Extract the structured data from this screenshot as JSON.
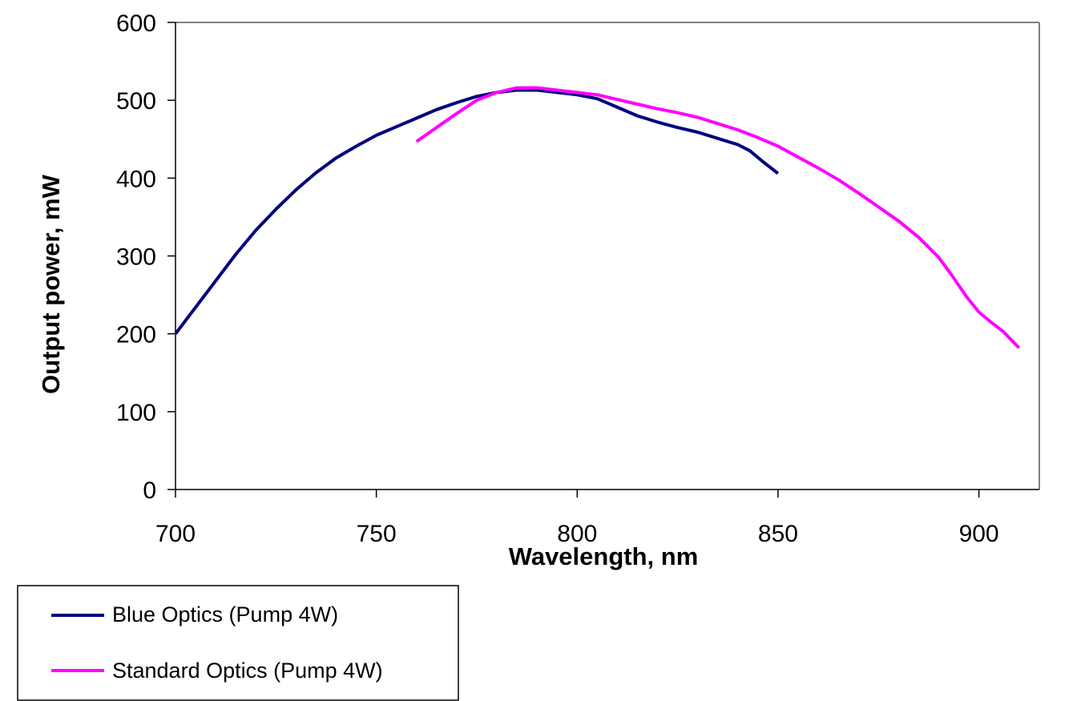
{
  "chart_data": {
    "type": "line",
    "title": "",
    "xlabel": "Wavelength, nm",
    "ylabel": "Output power, mW",
    "xlim": [
      700,
      915
    ],
    "ylim": [
      0,
      600
    ],
    "x_ticks": [
      700,
      750,
      800,
      850,
      900
    ],
    "y_ticks": [
      0,
      100,
      200,
      300,
      400,
      500,
      600
    ],
    "x_tick_labels": [
      "700",
      "750",
      "800",
      "850",
      "900"
    ],
    "y_tick_labels": [
      "0",
      "100",
      "200",
      "300",
      "400",
      "500",
      "600"
    ],
    "grid": false,
    "legend_placement": "bottom-left",
    "series": [
      {
        "name": "Blue Optics (Pump 4W)",
        "color": "#000080",
        "x": [
          700,
          705,
          710,
          715,
          720,
          725,
          730,
          735,
          740,
          745,
          750,
          755,
          760,
          765,
          770,
          775,
          780,
          785,
          790,
          795,
          800,
          805,
          810,
          815,
          820,
          825,
          830,
          835,
          840,
          843,
          846,
          850
        ],
        "y": [
          200,
          234,
          268,
          302,
          333,
          360,
          385,
          407,
          426,
          441,
          455,
          466,
          477,
          488,
          497,
          505,
          510,
          513,
          513,
          510,
          507,
          502,
          491,
          480,
          472,
          465,
          459,
          451,
          443,
          435,
          422,
          406
        ]
      },
      {
        "name": "Standard Optics (Pump 4W)",
        "color": "#FF00FF",
        "x": [
          760,
          765,
          770,
          775,
          780,
          785,
          790,
          795,
          800,
          805,
          810,
          815,
          820,
          825,
          830,
          835,
          840,
          845,
          850,
          855,
          860,
          865,
          870,
          875,
          880,
          885,
          890,
          893,
          897,
          900,
          903,
          906,
          910
        ],
        "y": [
          447,
          465,
          483,
          500,
          510,
          516,
          516,
          513,
          510,
          507,
          501,
          495,
          489,
          484,
          478,
          470,
          462,
          452,
          441,
          427,
          413,
          398,
          381,
          363,
          345,
          324,
          298,
          277,
          247,
          228,
          215,
          203,
          182
        ]
      }
    ]
  }
}
